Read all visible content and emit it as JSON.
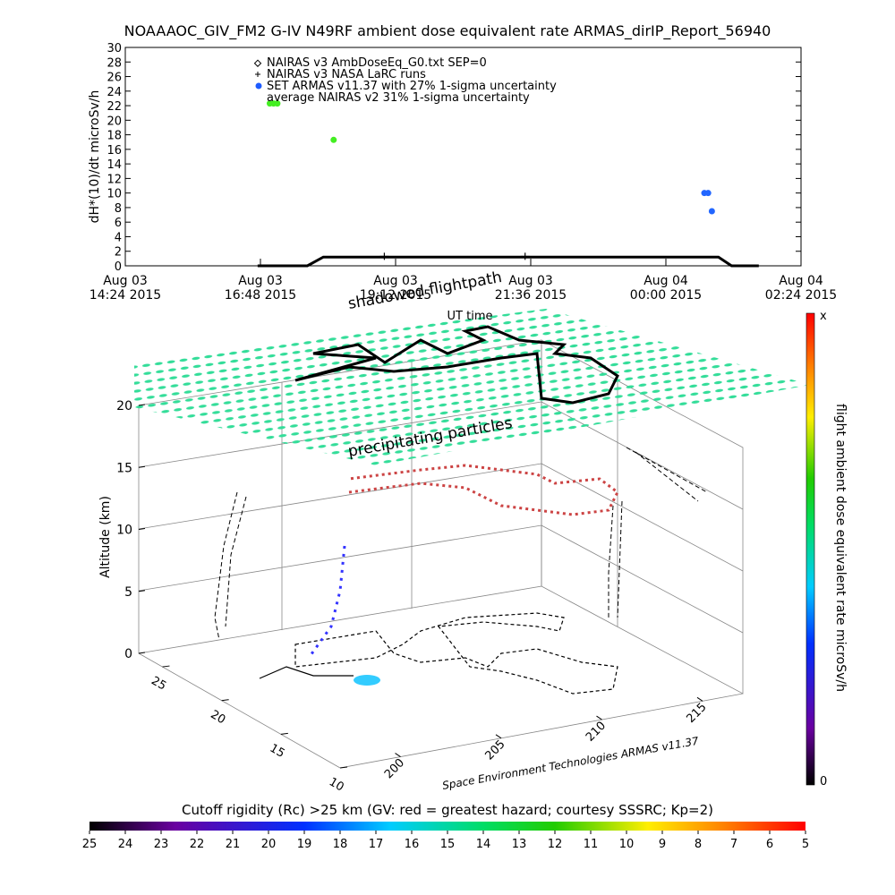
{
  "chart_data": [
    {
      "type": "line",
      "title": "NOAAAOC_GIV_FM2 G-IV   N49RF  ambient dose equivalent rate ARMAS_dirIP_Report_56940",
      "ylabel": "dH*(10)/dt microSv/h",
      "xlabel": "UT time",
      "ylim": [
        0,
        30
      ],
      "yticks": [
        0,
        2,
        4,
        6,
        8,
        10,
        12,
        14,
        16,
        18,
        20,
        22,
        24,
        26,
        28,
        30
      ],
      "xlim": [
        "2015-08-03T14:24",
        "2015-08-04T02:24"
      ],
      "xticks": [
        {
          "value": "2015-08-03T14:24",
          "label": [
            "Aug 03",
            "14:24 2015"
          ]
        },
        {
          "value": "2015-08-03T16:48",
          "label": [
            "Aug 03",
            "16:48 2015"
          ]
        },
        {
          "value": "2015-08-03T19:12",
          "label": [
            "Aug 03",
            "19:12 2015"
          ]
        },
        {
          "value": "2015-08-03T21:36",
          "label": [
            "Aug 03",
            "21:36 2015"
          ]
        },
        {
          "value": "2015-08-04T00:00",
          "label": [
            "Aug 04",
            "00:00 2015"
          ]
        },
        {
          "value": "2015-08-04T02:24",
          "label": [
            "Aug 04",
            "02:24 2015"
          ]
        }
      ],
      "series": [
        {
          "name": "NAIRAS v3 AmbDoseEq_G0.txt SEP=0",
          "color": "#000000",
          "marker": "line",
          "x": [
            "2015-08-03T16:45",
            "2015-08-03T17:38",
            "2015-08-03T17:55",
            "2015-08-04T00:56",
            "2015-08-04T01:10",
            "2015-08-04T01:39"
          ],
          "values": [
            0,
            0,
            1.2,
            1.2,
            0,
            0
          ]
        },
        {
          "name": "NAIRAS v3 NASA LaRC runs",
          "color": "#000000",
          "marker": "plus",
          "x": [
            "2015-08-03T19:00",
            "2015-08-03T21:30"
          ],
          "values": [
            1.3,
            1.3
          ]
        },
        {
          "name": "SET ARMAS v11.37 with 27% 1-sigma uncertainty",
          "color": "#1e5cff",
          "marker": "dot",
          "x": [
            "2015-08-03T16:58",
            "2015-08-03T17:02",
            "2015-08-03T17:06",
            "2015-08-03T18:06",
            "2015-08-04T00:41",
            "2015-08-04T00:45",
            "2015-08-04T00:49"
          ],
          "values": [
            22.3,
            22.3,
            22.3,
            17.3,
            10,
            10,
            7.5
          ],
          "point_colors": [
            "#44ee22",
            "#44ee22",
            "#44ee22",
            "#44ee22",
            "#2266ff",
            "#2266ff",
            "#2266ff"
          ]
        },
        {
          "name": "average NAIRAS v2 31% 1-sigma uncertainty",
          "color": "#000000",
          "marker": "none",
          "x": [],
          "values": []
        }
      ]
    },
    {
      "type": "scatter3d",
      "labels": [
        "shadowed flightpath",
        "precipitating particles"
      ],
      "zlabel": "Altitude (km)",
      "zlim": [
        0,
        20
      ],
      "zticks": [
        0,
        5,
        10,
        15,
        20
      ],
      "ylim": [
        27,
        10
      ],
      "yticks": [
        25,
        20,
        15,
        10
      ],
      "xlim": [
        197,
        217
      ],
      "xticks": [
        200,
        205,
        210,
        215
      ],
      "credit": "Space Environment Technologies ARMAS v11.37",
      "colorbar": {
        "label": "flight ambient dose equivalent rate microSv/h",
        "ends": [
          "0",
          "x"
        ]
      }
    },
    {
      "type": "colorbar",
      "title": "Cutoff rigidity (Rc) >25 km (GV: red = greatest hazard; courtesy SSSRC; Kp=2)",
      "xlim": [
        25,
        5
      ],
      "xticks": [
        25,
        24,
        23,
        22,
        21,
        20,
        19,
        18,
        17,
        16,
        15,
        14,
        13,
        12,
        11,
        10,
        9,
        8,
        7,
        6,
        5
      ]
    }
  ]
}
